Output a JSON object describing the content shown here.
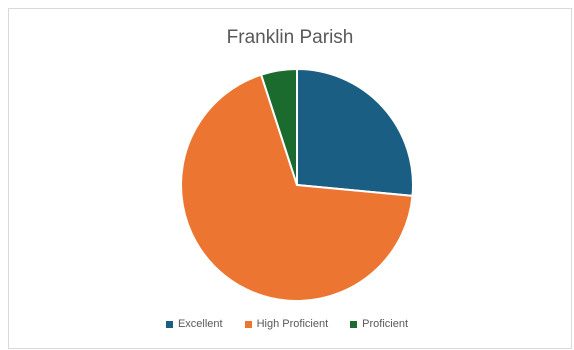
{
  "chart_data": {
    "type": "pie",
    "title": "Franklin Parish",
    "categories": [
      "Excellent",
      "High Proficient",
      "Proficient"
    ],
    "values": [
      26.5,
      68.5,
      5.0
    ],
    "colors": [
      "#1b5e83",
      "#ec7531",
      "#1a6b2d"
    ],
    "legend_position": "bottom"
  }
}
